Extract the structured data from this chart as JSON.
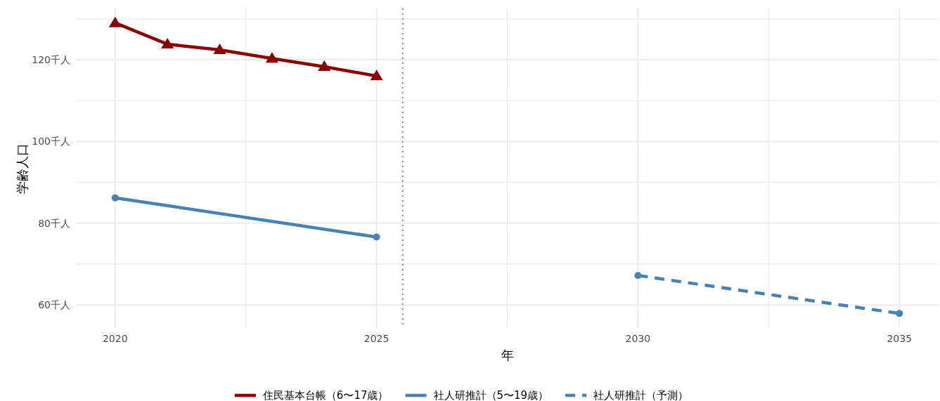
{
  "chart_data": {
    "type": "line",
    "xlabel": "年",
    "ylabel": "学齢人口",
    "xlim": [
      2019.25,
      2035.75
    ],
    "ylim": [
      54.35,
      132.55
    ],
    "xticks": [
      2020,
      {
        "value": 2022.5,
        "label": null
      },
      2025,
      {
        "value": 2027.5,
        "label": null
      },
      2030,
      {
        "value": 2032.5,
        "label": null
      },
      2035
    ],
    "yticks": [
      {
        "value": 60,
        "label": "60千人"
      },
      {
        "value": 70,
        "label": null
      },
      {
        "value": 80,
        "label": "80千人"
      },
      {
        "value": 90,
        "label": null
      },
      {
        "value": 100,
        "label": "100千人"
      },
      {
        "value": 110,
        "label": null
      },
      {
        "value": 120,
        "label": "120千人"
      },
      {
        "value": 130,
        "label": null
      }
    ],
    "grid": true,
    "legend": "bottom",
    "ref_lines": [
      {
        "axis": "x",
        "value": 2025.5,
        "color": "#888888",
        "line_style": "dotted"
      }
    ],
    "series": [
      {
        "name": "住民基本台帳（6〜17歳）",
        "color": "#8b0000",
        "marker": "triangle",
        "line_style": "solid",
        "x": [
          2020,
          2021,
          2022,
          2023,
          2024,
          2025
        ],
        "values": [
          129.0,
          123.8,
          122.4,
          120.3,
          118.3,
          116.0
        ]
      },
      {
        "name": "社人研推計（5〜19歳）",
        "color": "#4682b4",
        "marker": "circle",
        "line_style": "solid",
        "x": [
          2020,
          2025
        ],
        "values": [
          86.2,
          76.6
        ]
      },
      {
        "name": "社人研推計（予測）",
        "color": "#4682b4",
        "marker": "circle",
        "line_style": "dashed",
        "x": [
          2030,
          2035
        ],
        "values": [
          67.2,
          57.9
        ]
      }
    ]
  }
}
